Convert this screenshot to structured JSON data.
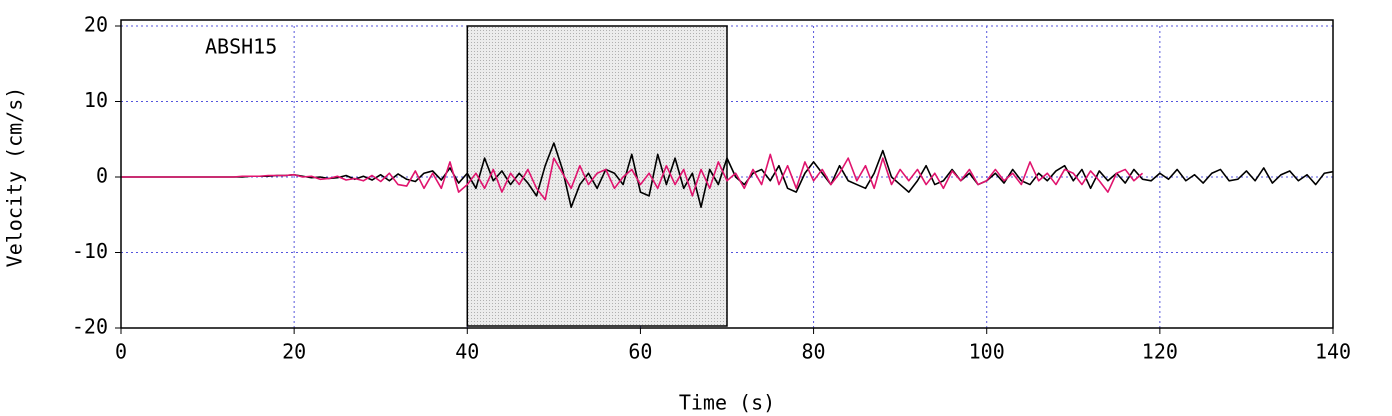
{
  "chart_data": {
    "type": "line",
    "annotation": "ABSH15",
    "xlabel": "Time (s)",
    "ylabel": "Velocity (cm/s)",
    "xlim": [
      0,
      140
    ],
    "ylim": [
      -20,
      20
    ],
    "xticks": [
      0,
      20,
      40,
      60,
      80,
      100,
      120,
      140
    ],
    "yticks": [
      -20,
      -10,
      0,
      10,
      20
    ],
    "grid": true,
    "highlight_x": [
      40,
      70
    ],
    "x": [
      0,
      1,
      2,
      3,
      4,
      5,
      6,
      7,
      8,
      9,
      10,
      11,
      12,
      13,
      14,
      15,
      16,
      17,
      18,
      19,
      20,
      21,
      22,
      23,
      24,
      25,
      26,
      27,
      28,
      29,
      30,
      31,
      32,
      33,
      34,
      35,
      36,
      37,
      38,
      39,
      40,
      41,
      42,
      43,
      44,
      45,
      46,
      47,
      48,
      49,
      50,
      51,
      52,
      53,
      54,
      55,
      56,
      57,
      58,
      59,
      60,
      61,
      62,
      63,
      64,
      65,
      66,
      67,
      68,
      69,
      70,
      71,
      72,
      73,
      74,
      75,
      76,
      77,
      78,
      79,
      80,
      81,
      82,
      83,
      84,
      85,
      86,
      87,
      88,
      89,
      90,
      91,
      92,
      93,
      94,
      95,
      96,
      97,
      98,
      99,
      100,
      101,
      102,
      103,
      104,
      105,
      106,
      107,
      108,
      109,
      110,
      111,
      112,
      113,
      114,
      115,
      116,
      117,
      118,
      119,
      120,
      121,
      122,
      123,
      124,
      125,
      126,
      127,
      128,
      129,
      130,
      131,
      132,
      133,
      134,
      135,
      136,
      137,
      138,
      139,
      140
    ],
    "series": [
      {
        "color": "#000000",
        "values": [
          0,
          0,
          0,
          0,
          0,
          0,
          0,
          0,
          0,
          0,
          0,
          0,
          0,
          0,
          0,
          0.1,
          0.1,
          0.1,
          0.2,
          0.2,
          0.3,
          0.1,
          -0.1,
          0,
          -0.2,
          -0.1,
          0.2,
          -0.3,
          0.1,
          -0.4,
          0.3,
          -0.5,
          0.4,
          -0.3,
          -0.6,
          0.5,
          0.8,
          -0.4,
          1.2,
          -0.8,
          0.5,
          -1.5,
          2.5,
          -0.5,
          0.8,
          -1,
          0.5,
          -0.8,
          -2.5,
          1.5,
          4.5,
          1,
          -4,
          -1,
          0.5,
          -1.5,
          1,
          0.5,
          -1,
          3,
          -2,
          -2.5,
          3,
          -1,
          2.5,
          -1.5,
          0.5,
          -4,
          1,
          -1,
          2.5,
          0,
          -1,
          0.5,
          1,
          -0.5,
          1.5,
          -1.5,
          -2,
          0.5,
          2,
          0.5,
          -1,
          1.5,
          -0.5,
          -1,
          -1.5,
          0.5,
          3.5,
          0,
          -1,
          -2,
          -0.5,
          1.5,
          -1,
          -0.5,
          1,
          -0.5,
          0.5,
          -1,
          -0.5,
          0.5,
          -0.8,
          1,
          -0.5,
          -1,
          0.5,
          -0.5,
          0.8,
          1.5,
          -0.5,
          1,
          -1.5,
          0.8,
          -0.5,
          0.5,
          -0.8,
          1,
          -0.3,
          -0.5,
          0.5,
          -0.3,
          1,
          -0.5,
          0.3,
          -0.8,
          0.5,
          1,
          -0.5,
          -0.3,
          0.8,
          -0.5,
          1.2,
          -0.8,
          0.3,
          0.8,
          -0.5,
          0.3,
          -1,
          0.5,
          0.7
        ]
      },
      {
        "color": "#e0146e",
        "values": [
          0,
          0,
          0,
          0,
          0,
          0,
          0,
          0,
          0,
          0,
          0,
          0,
          0,
          0,
          0.1,
          0.1,
          0.1,
          0.2,
          0.2,
          0.2,
          0.3,
          0,
          0.1,
          -0.3,
          -0.2,
          0.1,
          -0.4,
          -0.2,
          -0.5,
          0.2,
          -0.6,
          0.5,
          -1,
          -1.2,
          0.8,
          -1.5,
          0.5,
          -1.5,
          2,
          -2,
          -1,
          0.5,
          -1.5,
          1,
          -2,
          0.5,
          -1,
          1,
          -1.5,
          -3,
          2.5,
          0.5,
          -1.5,
          1.5,
          -1,
          0.5,
          1,
          -1.5,
          0,
          1,
          -1,
          0.5,
          -1.5,
          1.5,
          -1,
          1,
          -2.5,
          1,
          -1.5,
          2,
          -0.5,
          0.5,
          -1.5,
          1,
          -1,
          3,
          -1,
          1.5,
          -1.5,
          2,
          -0.5,
          1,
          -1,
          0.5,
          2.5,
          -0.5,
          1.5,
          -1.5,
          2.5,
          -1,
          1,
          -0.5,
          1,
          -1,
          0.5,
          -1.5,
          0.8,
          -0.5,
          1,
          -1,
          -0.5,
          1,
          -0.5,
          0.5,
          -1,
          2,
          -0.5,
          0.5,
          -1,
          1,
          0.5,
          -1,
          0.8,
          -0.5,
          -2,
          0.5,
          1,
          -0.5,
          0.5,
          null,
          null,
          null,
          null,
          null,
          null,
          null,
          null,
          null,
          null,
          null,
          null,
          null,
          null,
          null,
          null,
          null,
          null,
          null,
          null,
          null,
          null
        ]
      }
    ]
  }
}
